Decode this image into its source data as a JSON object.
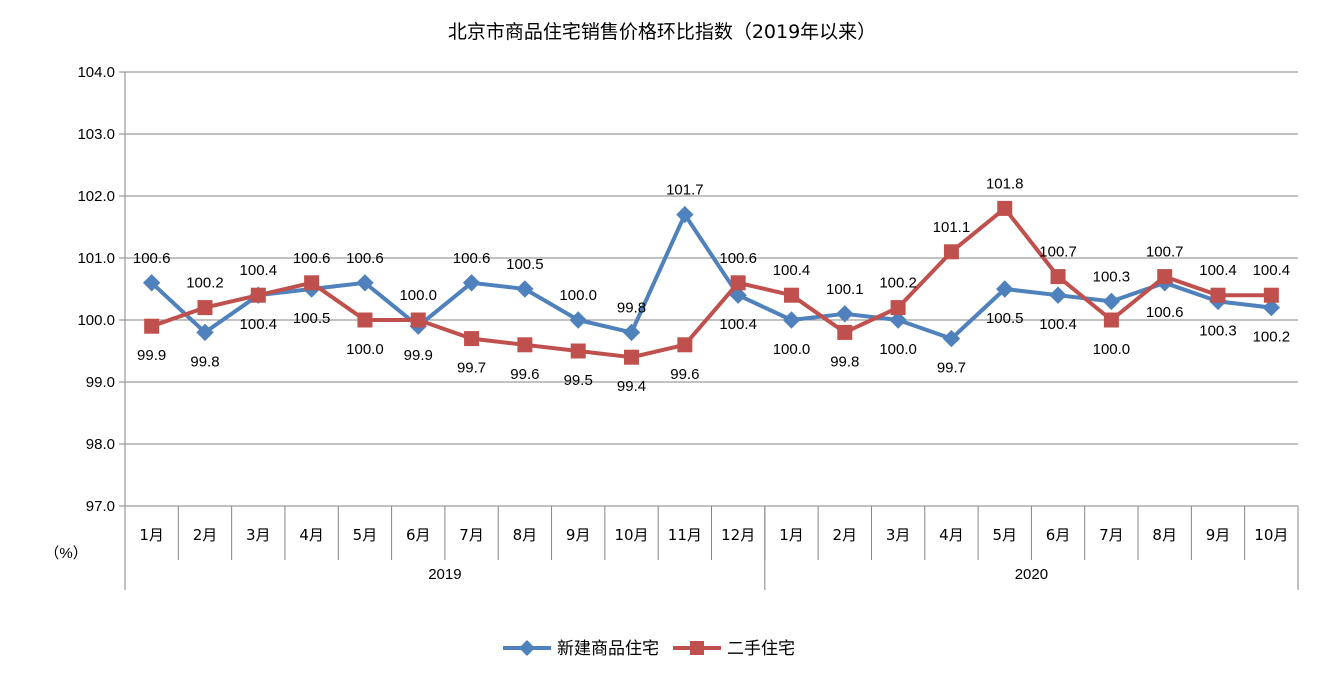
{
  "chart_data": {
    "type": "line",
    "title": "北京市商品住宅销售价格环比指数（2019年以来）",
    "ylabel": "（%）",
    "xlabel": "",
    "ylim": [
      97.0,
      104.0
    ],
    "ytick_step": 1.0,
    "grid": "horizontal",
    "legend_position": "bottom",
    "categories": [
      "1月",
      "2月",
      "3月",
      "4月",
      "5月",
      "6月",
      "7月",
      "8月",
      "9月",
      "10月",
      "11月",
      "12月",
      "1月",
      "2月",
      "3月",
      "4月",
      "5月",
      "6月",
      "7月",
      "8月",
      "9月",
      "10月"
    ],
    "groups": [
      {
        "label": "2019",
        "count": 12
      },
      {
        "label": "2020",
        "count": 10
      }
    ],
    "series": [
      {
        "name": "新建商品住宅",
        "color": "#4F81BD",
        "marker": "diamond",
        "values": [
          100.6,
          99.8,
          100.4,
          100.5,
          100.6,
          99.9,
          100.6,
          100.5,
          100.0,
          99.8,
          101.7,
          100.4,
          100.0,
          100.1,
          100.0,
          99.7,
          100.5,
          100.4,
          100.3,
          100.6,
          100.3,
          100.2
        ],
        "labels": [
          "100.6",
          "99.8",
          "100.4",
          "100.5",
          "100.6",
          "99.9",
          "100.6",
          "100.5",
          "100.0",
          "99.8",
          "101.7",
          "100.4",
          "100.0",
          "100.1",
          "100.0",
          "99.7",
          "100.5",
          "100.4",
          "100.3",
          "100.6",
          "100.3",
          "100.2"
        ]
      },
      {
        "name": "二手住宅",
        "color": "#C0504D",
        "marker": "square",
        "values": [
          99.9,
          100.2,
          100.4,
          100.6,
          100.0,
          100.0,
          99.7,
          99.6,
          99.5,
          99.4,
          99.6,
          100.6,
          100.4,
          99.8,
          100.2,
          101.1,
          101.8,
          100.7,
          100.0,
          100.7,
          100.4,
          100.4
        ],
        "labels": [
          "99.9",
          "100.2",
          "100.4",
          "100.6",
          "100.0",
          "100.0",
          "99.7",
          "99.6",
          "99.5",
          "99.4",
          "99.6",
          "100.6",
          "100.4",
          "99.8",
          "100.2",
          "101.1",
          "101.8",
          "100.7",
          "100.0",
          "100.7",
          "100.4",
          "100.4"
        ]
      }
    ]
  }
}
